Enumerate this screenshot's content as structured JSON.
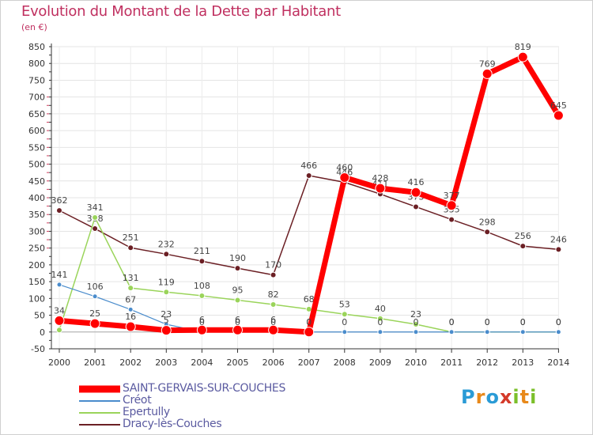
{
  "title": "Evolution du Montant de la Dette par Habitant",
  "unit_label": "(en €)",
  "logo": {
    "letters": [
      "P",
      "r",
      "o",
      "x",
      "i",
      "t",
      "i"
    ],
    "colors": [
      "#2a9bd6",
      "#e8891b",
      "#2a9bd6",
      "#d43a2a",
      "#7bbf2a",
      "#e8891b",
      "#7bbf2a"
    ]
  },
  "chart_data": {
    "type": "line",
    "x": [
      2000,
      2001,
      2002,
      2003,
      2004,
      2005,
      2006,
      2007,
      2008,
      2009,
      2010,
      2011,
      2012,
      2013,
      2014
    ],
    "ylim": [
      -50,
      850
    ],
    "yticks": [
      -50,
      0,
      50,
      100,
      150,
      200,
      250,
      300,
      350,
      400,
      450,
      500,
      550,
      600,
      650,
      700,
      750,
      800,
      850
    ],
    "grid": true,
    "legend_position": "bottom-left",
    "series": [
      {
        "name": "Dracy-lès-Couches",
        "color": "#6b1f24",
        "width": 1.5,
        "marker_r": 3.5,
        "values": [
          362,
          308,
          251,
          232,
          211,
          190,
          170,
          466,
          446,
          411,
          373,
          335,
          298,
          256,
          246
        ],
        "labels": [
          "362",
          "308",
          "251",
          "232",
          "211",
          "190",
          "170",
          "466",
          "446",
          "411",
          "373",
          "335",
          "298",
          "256",
          "246"
        ]
      },
      {
        "name": "Epertully",
        "color": "#9ad45a",
        "width": 1.5,
        "marker_r": 3.5,
        "values": [
          6,
          341,
          131,
          119,
          108,
          95,
          82,
          68,
          53,
          40,
          23,
          0,
          0,
          0,
          0
        ],
        "labels": [
          "",
          "341",
          "131",
          "119",
          "108",
          "95",
          "82",
          "68",
          "53",
          "40",
          "23",
          "0",
          "0",
          "0",
          "0"
        ]
      },
      {
        "name": "Créot",
        "color": "#4a8ccc",
        "width": 1.2,
        "marker_r": 3,
        "values": [
          141,
          106,
          67,
          23,
          0,
          0,
          0,
          0,
          0,
          0,
          0,
          0,
          0,
          0,
          0
        ],
        "labels": [
          "141",
          "106",
          "67",
          "23",
          "0",
          "0",
          "0",
          "0",
          "0",
          "0",
          "0",
          "0",
          "0",
          "0",
          "0"
        ]
      },
      {
        "name": "SAINT-GERVAIS-SUR-COUCHES",
        "color": "#ff0000",
        "width": 7,
        "marker_r": 6,
        "values": [
          34,
          25,
          16,
          5,
          6,
          6,
          6,
          0,
          460,
          428,
          416,
          377,
          769,
          819,
          645
        ],
        "labels": [
          "34",
          "25",
          "16",
          "5",
          "6",
          "6",
          "6",
          "0",
          "460",
          "428",
          "416",
          "377",
          "769",
          "819",
          "645"
        ]
      }
    ]
  },
  "legend_order": [
    "SAINT-GERVAIS-SUR-COUCHES",
    "Créot",
    "Epertully",
    "Dracy-lès-Couches"
  ]
}
